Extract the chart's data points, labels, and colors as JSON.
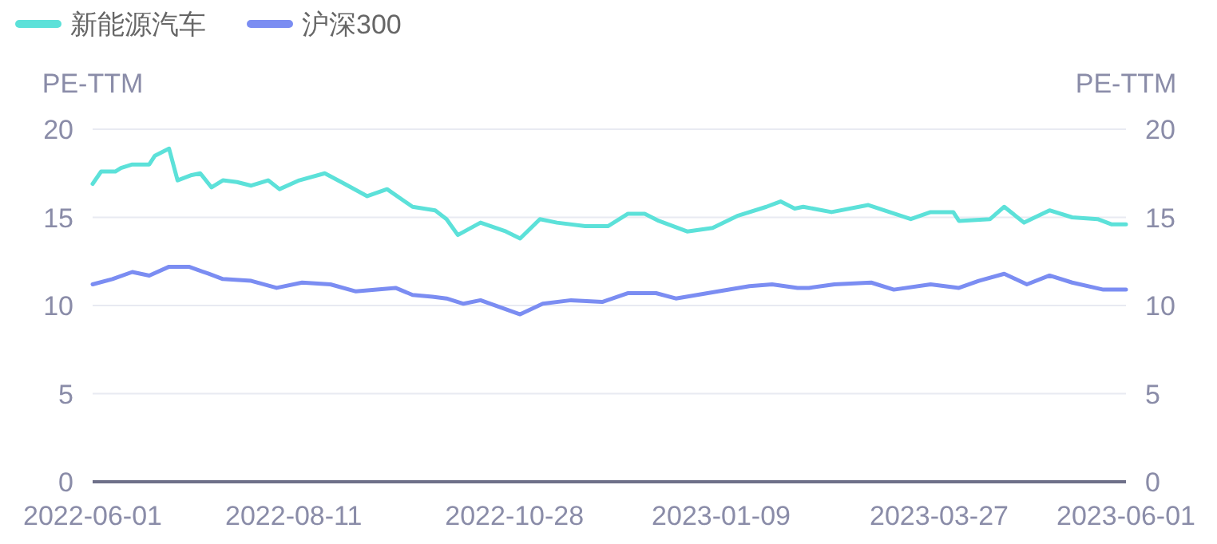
{
  "chart_data": {
    "type": "line",
    "ylabel": "PE-TTM",
    "y2label": "PE-TTM",
    "legend": "top left",
    "grid": "y",
    "marker": "none",
    "line_style": "solid",
    "xlim": [
      "2022-06-01",
      "2023-06-01"
    ],
    "xticks": [
      {
        "value": "2022-06-01",
        "label": "2022-06-01"
      },
      {
        "value": "2022-08-11",
        "label": "2022-08-11"
      },
      {
        "value": "2022-10-28",
        "label": "2022-10-28"
      },
      {
        "value": "2023-01-09",
        "label": "2023-01-09"
      },
      {
        "value": "2023-03-27",
        "label": "2023-03-27"
      },
      {
        "value": "2023-06-01",
        "label": "2023-06-01"
      }
    ],
    "ylim": [
      0,
      20
    ],
    "yticks": [
      0,
      5,
      10,
      15,
      20
    ],
    "y2lim": [
      0,
      20
    ],
    "y2ticks": [
      0,
      5,
      10,
      15,
      20
    ],
    "series": [
      {
        "name": "新能源汽车",
        "color": "#5ce1d9",
        "x": [
          "2022-06-01",
          "2022-06-04",
          "2022-06-09",
          "2022-06-11",
          "2022-06-15",
          "2022-06-21",
          "2022-06-23",
          "2022-06-28",
          "2022-07-01",
          "2022-07-06",
          "2022-07-09",
          "2022-07-13",
          "2022-07-17",
          "2022-07-22",
          "2022-07-27",
          "2022-08-02",
          "2022-08-06",
          "2022-08-13",
          "2022-08-22",
          "2022-08-29",
          "2022-09-06",
          "2022-09-13",
          "2022-09-22",
          "2022-09-30",
          "2022-10-04",
          "2022-10-08",
          "2022-10-16",
          "2022-10-25",
          "2022-10-30",
          "2022-11-06",
          "2022-11-12",
          "2022-11-22",
          "2022-11-30",
          "2022-12-07",
          "2022-12-13",
          "2022-12-18",
          "2022-12-28",
          "2023-01-06",
          "2023-01-15",
          "2023-01-25",
          "2023-01-30",
          "2023-02-04",
          "2023-02-07",
          "2023-02-17",
          "2023-03-02",
          "2023-03-17",
          "2023-03-24",
          "2023-04-01",
          "2023-04-03",
          "2023-04-14",
          "2023-04-19",
          "2023-04-26",
          "2023-05-05",
          "2023-05-13",
          "2023-05-22",
          "2023-05-27",
          "2023-06-01"
        ],
        "values": [
          16.9,
          17.6,
          17.6,
          17.8,
          18.0,
          18.0,
          18.5,
          18.9,
          17.1,
          17.4,
          17.5,
          16.7,
          17.1,
          17.0,
          16.8,
          17.1,
          16.6,
          17.1,
          17.5,
          16.9,
          16.2,
          16.6,
          15.6,
          15.4,
          14.9,
          14.0,
          14.7,
          14.2,
          13.8,
          14.9,
          14.7,
          14.5,
          14.5,
          15.2,
          15.2,
          14.8,
          14.2,
          14.4,
          15.1,
          15.6,
          15.9,
          15.5,
          15.6,
          15.3,
          15.7,
          14.9,
          15.3,
          15.3,
          14.8,
          14.9,
          15.6,
          14.7,
          15.4,
          15.0,
          14.9,
          14.6,
          14.6
        ]
      },
      {
        "name": "沪深300",
        "color": "#7b8df2",
        "x": [
          "2022-06-01",
          "2022-06-08",
          "2022-06-15",
          "2022-06-21",
          "2022-06-28",
          "2022-07-05",
          "2022-07-12",
          "2022-07-17",
          "2022-07-27",
          "2022-08-05",
          "2022-08-14",
          "2022-08-24",
          "2022-09-02",
          "2022-09-16",
          "2022-09-22",
          "2022-09-29",
          "2022-10-04",
          "2022-10-10",
          "2022-10-16",
          "2022-10-30",
          "2022-11-07",
          "2022-11-17",
          "2022-11-28",
          "2022-12-07",
          "2022-12-17",
          "2022-12-24",
          "2023-01-08",
          "2023-01-19",
          "2023-01-27",
          "2023-02-05",
          "2023-02-09",
          "2023-02-18",
          "2023-03-03",
          "2023-03-11",
          "2023-03-24",
          "2023-04-03",
          "2023-04-10",
          "2023-04-19",
          "2023-04-27",
          "2023-05-05",
          "2023-05-13",
          "2023-05-24",
          "2023-06-01"
        ],
        "values": [
          11.2,
          11.5,
          11.9,
          11.7,
          12.2,
          12.2,
          11.8,
          11.5,
          11.4,
          11.0,
          11.3,
          11.2,
          10.8,
          11.0,
          10.6,
          10.5,
          10.4,
          10.1,
          10.3,
          9.5,
          10.1,
          10.3,
          10.2,
          10.7,
          10.7,
          10.4,
          10.8,
          11.1,
          11.2,
          11.0,
          11.0,
          11.2,
          11.3,
          10.9,
          11.2,
          11.0,
          11.4,
          11.8,
          11.2,
          11.7,
          11.3,
          10.9,
          10.9
        ]
      }
    ]
  }
}
